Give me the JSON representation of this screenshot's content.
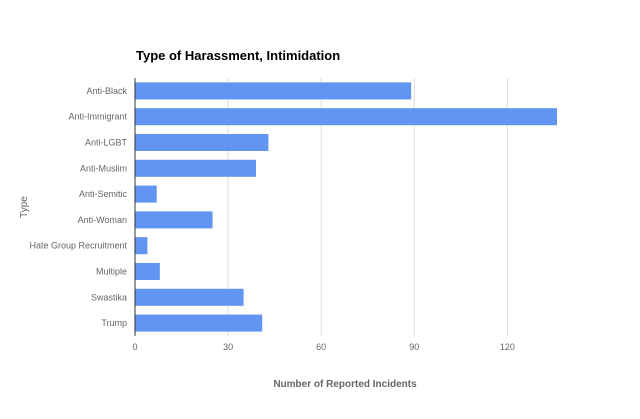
{
  "chart_data": {
    "type": "bar",
    "orientation": "horizontal",
    "title": "Type of Harassment, Intimidation",
    "xlabel": "Number of Reported Incidents",
    "ylabel": "Type",
    "categories": [
      "Anti-Black",
      "Anti-Immigrant",
      "Anti-LGBT",
      "Anti-Muslim",
      "Anti-Semitic",
      "Anti-Woman",
      "Hate Group Recruitment",
      "Multiple",
      "Swastika",
      "Trump"
    ],
    "values": [
      89,
      136,
      43,
      39,
      7,
      25,
      4,
      8,
      35,
      41
    ],
    "xlim": [
      0,
      136
    ],
    "xticks": [
      0,
      30,
      60,
      90,
      120
    ],
    "grid": true,
    "legend": "none",
    "colors": {
      "bar": "#6195f1",
      "grid": "#dddddd",
      "axis": "#333333",
      "title": "#000000",
      "label": "#666666"
    }
  }
}
